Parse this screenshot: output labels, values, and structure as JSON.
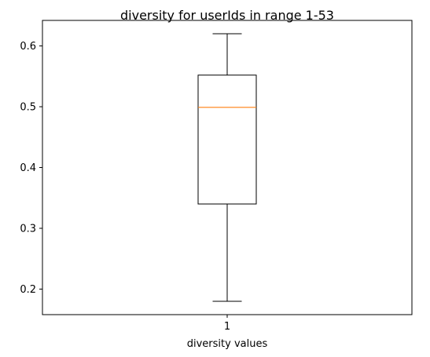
{
  "chart_data": {
    "type": "box",
    "title": "diversity for userIds in range 1-53",
    "xlabel": "diversity values",
    "ylabel": "",
    "categories": [
      "1"
    ],
    "boxes": [
      {
        "category": "1",
        "whisker_low": 0.18,
        "q1": 0.34,
        "median": 0.499,
        "q3": 0.552,
        "whisker_high": 0.62
      }
    ],
    "ylim": [
      0.158,
      0.642
    ],
    "yticks": [
      0.2,
      0.3,
      0.4,
      0.5,
      0.6
    ],
    "ytick_labels": [
      "0.2",
      "0.3",
      "0.4",
      "0.5",
      "0.6"
    ],
    "grid": false,
    "colors": {
      "box": "#000000",
      "median": "#ff7f0e",
      "whisker": "#000000"
    }
  }
}
